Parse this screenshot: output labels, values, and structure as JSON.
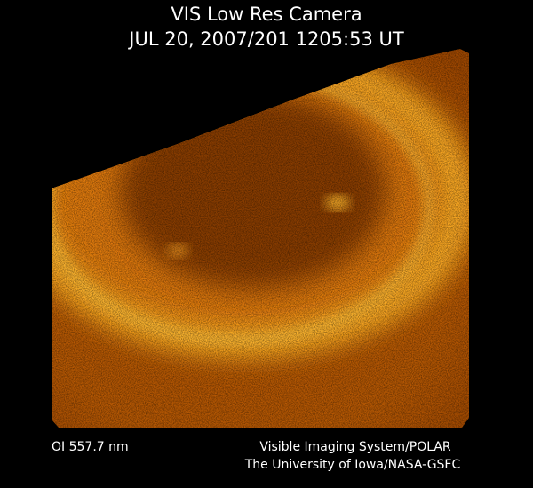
{
  "header": {
    "title": "VIS Low Res Camera",
    "timestamp": "JUL 20, 2007/201 1205:53 UT"
  },
  "footer": {
    "filter": "OI 557.7 nm",
    "credits": [
      "Visible Imaging System/POLAR",
      "The University of Iowa/NASA-GSFC"
    ]
  }
}
